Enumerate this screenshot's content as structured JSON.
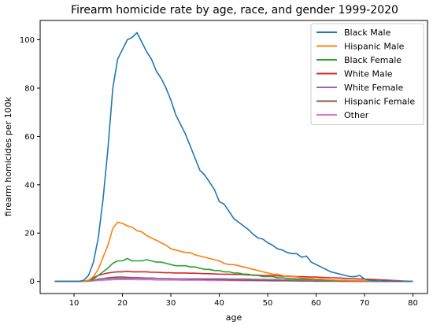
{
  "chart_data": {
    "type": "line",
    "title": "Firearm homicide rate by age, race, and gender 1999-2020",
    "xlabel": "age",
    "ylabel": "firearm homicides per 100k",
    "xlim": [
      3,
      83
    ],
    "ylim": [
      -5,
      108
    ],
    "x_ticks": [
      10,
      20,
      30,
      40,
      50,
      60,
      70,
      80
    ],
    "y_ticks": [
      0,
      20,
      40,
      60,
      80,
      100
    ],
    "grid": false,
    "legend": "top-right",
    "x": [
      6,
      7,
      8,
      9,
      10,
      11,
      12,
      13,
      14,
      15,
      16,
      17,
      18,
      19,
      20,
      21,
      22,
      23,
      24,
      25,
      26,
      27,
      28,
      29,
      30,
      31,
      32,
      33,
      34,
      35,
      36,
      37,
      38,
      39,
      40,
      41,
      42,
      43,
      44,
      45,
      46,
      47,
      48,
      49,
      50,
      51,
      52,
      53,
      54,
      55,
      56,
      57,
      58,
      59,
      60,
      61,
      62,
      63,
      64,
      65,
      66,
      67,
      68,
      69,
      70,
      71,
      72,
      73,
      74,
      75,
      76,
      77,
      78,
      79,
      80
    ],
    "series": [
      {
        "name": "Black Male",
        "color": "#1f77b4",
        "values": [
          0,
          0,
          0,
          0,
          0,
          0,
          0.5,
          2.5,
          8,
          18,
          34,
          55,
          80,
          92,
          96,
          100,
          101,
          103,
          99,
          95,
          92,
          87,
          84,
          80,
          75,
          69,
          65,
          61,
          56,
          51,
          46,
          44,
          41,
          38,
          33,
          32,
          29,
          26,
          24.5,
          23,
          21.5,
          19.5,
          18,
          17.5,
          16,
          15,
          13.5,
          13,
          12,
          11.5,
          11.5,
          10,
          10.5,
          8,
          7,
          6,
          5,
          4,
          3.5,
          3,
          2.5,
          2,
          2,
          2.5,
          1,
          0.5,
          0.3,
          0.2,
          0.1,
          0.1,
          0,
          0,
          0,
          0,
          0
        ]
      },
      {
        "name": "Hispanic Male",
        "color": "#ff7f0e",
        "values": [
          0,
          0,
          0,
          0,
          0,
          0,
          0.1,
          0.5,
          2,
          5,
          10,
          15,
          22,
          24.5,
          24,
          23,
          22.5,
          21,
          20.5,
          19,
          18,
          17,
          16,
          15,
          13.5,
          13,
          12.5,
          12,
          12,
          11,
          10.5,
          10,
          9.5,
          9,
          8.5,
          7.5,
          7,
          7,
          6.5,
          6,
          5.5,
          5,
          4.5,
          4,
          3.5,
          3,
          3,
          2.5,
          2,
          2,
          1.8,
          1.5,
          1.3,
          1.2,
          1,
          1,
          0.8,
          0.7,
          0.6,
          0.5,
          0.5,
          0.4,
          0.3,
          0.3,
          0.3,
          0.2,
          0.2,
          0.1,
          0.1,
          0.1,
          0.1,
          0.1,
          0.1,
          0,
          0
        ]
      },
      {
        "name": "Black Female",
        "color": "#2ca02c",
        "values": [
          0,
          0,
          0,
          0,
          0,
          0,
          0.1,
          0.3,
          1,
          2.5,
          4,
          5.5,
          7.5,
          8.5,
          8.5,
          9.5,
          8.5,
          8.5,
          8.5,
          9,
          8.5,
          8,
          8,
          7.5,
          7,
          6.5,
          6.5,
          6.5,
          6,
          6,
          5.5,
          5,
          5,
          4.5,
          4.5,
          4,
          4,
          3.5,
          3.5,
          3,
          3,
          2.5,
          2.5,
          2,
          2,
          2,
          1.5,
          1.5,
          1.3,
          1.2,
          1,
          1,
          0.9,
          0.8,
          0.7,
          0.6,
          0.5,
          0.4,
          0.4,
          0.3,
          0.3,
          0.3,
          0.2,
          0.2,
          0.2,
          0.1,
          0.1,
          0.1,
          0.1,
          0.1,
          0,
          0,
          0,
          0,
          0
        ]
      },
      {
        "name": "White Male",
        "color": "#d62728",
        "values": [
          0,
          0,
          0,
          0,
          0,
          0,
          0.1,
          0.5,
          1.5,
          2.5,
          3,
          3.5,
          3.8,
          4,
          4,
          4.2,
          4,
          4,
          4,
          4,
          3.8,
          3.8,
          3.7,
          3.6,
          3.6,
          3.5,
          3.5,
          3.5,
          3.4,
          3.4,
          3.3,
          3.2,
          3.2,
          3.1,
          3,
          3,
          3,
          2.9,
          2.9,
          2.8,
          2.7,
          2.7,
          2.6,
          2.5,
          2.5,
          2.4,
          2.3,
          2.2,
          2.2,
          2.1,
          2,
          2,
          1.9,
          1.8,
          1.8,
          1.7,
          1.6,
          1.5,
          1.5,
          1.4,
          1.3,
          1.2,
          1.1,
          1,
          1,
          0.9,
          0.8,
          0.7,
          0.6,
          0.5,
          0.4,
          0.3,
          0.2,
          0.1,
          0
        ]
      },
      {
        "name": "White Female",
        "color": "#9467bd",
        "values": [
          0,
          0,
          0,
          0,
          0,
          0,
          0.05,
          0.2,
          0.5,
          0.8,
          1,
          1.1,
          1.2,
          1.3,
          1.3,
          1.3,
          1.3,
          1.3,
          1.2,
          1.2,
          1.2,
          1.2,
          1.2,
          1.2,
          1.2,
          1.1,
          1.1,
          1.1,
          1.1,
          1.1,
          1.1,
          1.1,
          1.1,
          1.1,
          1.1,
          1.1,
          1,
          1,
          1,
          1,
          1,
          0.9,
          0.9,
          0.9,
          0.8,
          0.8,
          0.8,
          0.7,
          0.7,
          0.6,
          0.6,
          0.6,
          0.5,
          0.5,
          0.5,
          0.4,
          0.4,
          0.4,
          0.3,
          0.3,
          0.3,
          0.2,
          0.2,
          0.2,
          0.2,
          0.1,
          0.1,
          0.1,
          0.1,
          0.1,
          0,
          0,
          0,
          0,
          0
        ]
      },
      {
        "name": "Hispanic Female",
        "color": "#8c564b",
        "values": [
          0,
          0,
          0,
          0,
          0,
          0,
          0.05,
          0.2,
          0.5,
          1,
          1.2,
          1.5,
          1.7,
          1.8,
          1.8,
          1.7,
          1.6,
          1.6,
          1.5,
          1.4,
          1.4,
          1.3,
          1.2,
          1.2,
          1.1,
          1.1,
          1,
          1,
          0.9,
          0.9,
          0.9,
          0.8,
          0.8,
          0.8,
          0.7,
          0.7,
          0.6,
          0.6,
          0.6,
          0.5,
          0.5,
          0.5,
          0.4,
          0.4,
          0.4,
          0.3,
          0.3,
          0.3,
          0.3,
          0.2,
          0.2,
          0.2,
          0.2,
          0.2,
          0.1,
          0.1,
          0.1,
          0.1,
          0.1,
          0.1,
          0.1,
          0.1,
          0,
          0,
          0,
          0,
          0,
          0,
          0,
          0,
          0,
          0,
          0,
          0,
          0
        ]
      },
      {
        "name": "Other",
        "color": "#e377c2",
        "values": [
          0,
          0,
          0,
          0,
          0,
          0,
          0,
          0.1,
          0.2,
          0.4,
          0.5,
          0.6,
          0.7,
          0.8,
          0.8,
          0.8,
          0.8,
          0.7,
          0.7,
          0.7,
          0.7,
          0.6,
          0.6,
          0.6,
          0.6,
          0.6,
          0.5,
          0.5,
          0.5,
          0.5,
          0.5,
          0.5,
          0.4,
          0.4,
          0.4,
          0.4,
          0.4,
          0.4,
          0.3,
          0.3,
          0.3,
          0.3,
          0.3,
          0.3,
          0.2,
          0.2,
          0.2,
          0.2,
          0.2,
          0.2,
          0.2,
          0.1,
          0.1,
          0.1,
          0.1,
          0.1,
          0.1,
          0.1,
          0.1,
          0,
          0,
          0,
          0,
          0,
          0,
          0,
          0,
          0,
          0,
          0,
          0,
          0,
          0,
          0,
          0
        ]
      }
    ]
  }
}
